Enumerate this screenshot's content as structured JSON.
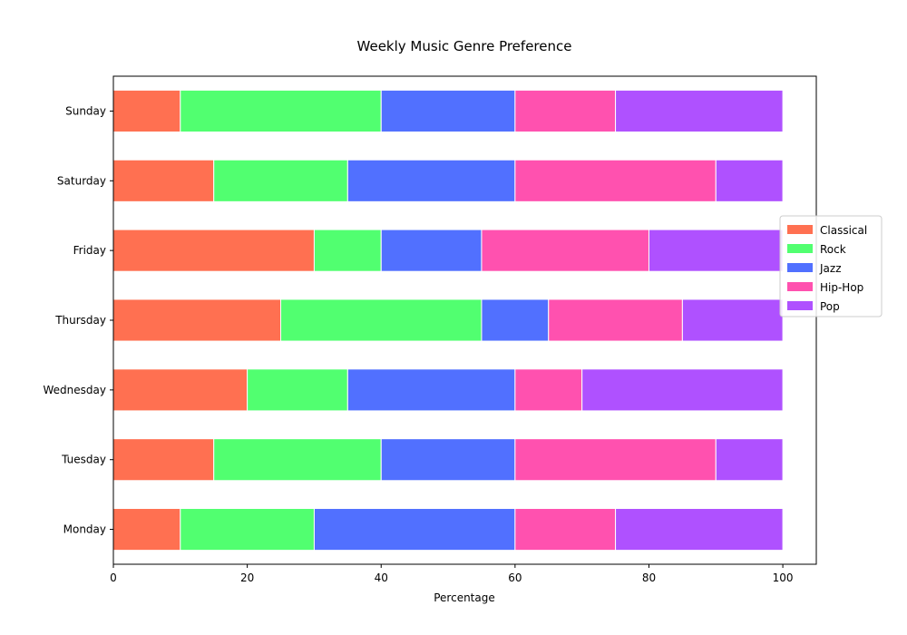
{
  "chart_data": {
    "type": "bar",
    "orientation": "horizontal",
    "stacked": true,
    "title": "Weekly Music Genre Preference",
    "xlabel": "Percentage",
    "ylabel": "",
    "xlim": [
      0,
      105
    ],
    "xticks": [
      0,
      20,
      40,
      60,
      80,
      100
    ],
    "xtick_labels": [
      "0",
      "20",
      "40",
      "60",
      "80",
      "100"
    ],
    "categories": [
      "Monday",
      "Tuesday",
      "Wednesday",
      "Thursday",
      "Friday",
      "Saturday",
      "Sunday"
    ],
    "series": [
      {
        "name": "Classical",
        "color": "#ff5733",
        "values": [
          10,
          15,
          20,
          25,
          30,
          15,
          10
        ]
      },
      {
        "name": "Rock",
        "color": "#33ff57",
        "values": [
          20,
          25,
          15,
          30,
          10,
          20,
          30
        ]
      },
      {
        "name": "Jazz",
        "color": "#3357ff",
        "values": [
          30,
          20,
          25,
          10,
          15,
          25,
          20
        ]
      },
      {
        "name": "Hip-Hop",
        "color": "#ff33a1",
        "values": [
          15,
          30,
          10,
          20,
          25,
          30,
          15
        ]
      },
      {
        "name": "Pop",
        "color": "#a133ff",
        "values": [
          25,
          10,
          30,
          15,
          20,
          10,
          25
        ]
      }
    ],
    "legend_position": "right",
    "grid": false
  }
}
